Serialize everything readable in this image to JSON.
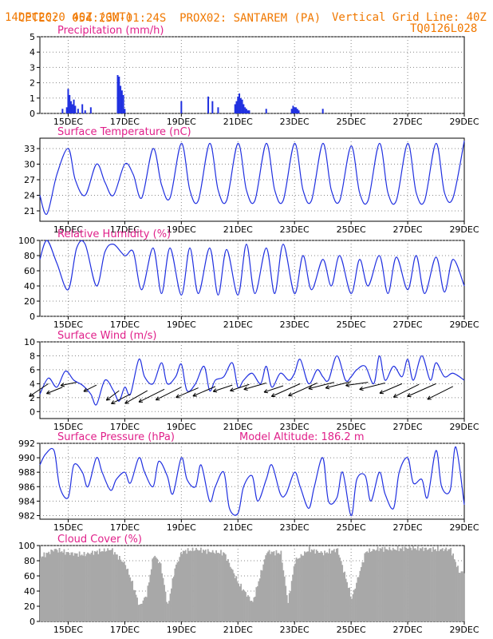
{
  "header": {
    "source": "CPTEC:",
    "coords": "054:23W-01:24S",
    "station": "PROX02: SANTAREM (PA)",
    "run": "14DEC2020 40Z (GMT)",
    "grid_note": "Vertical Grid Line: 40Z",
    "model": "TQ0126L028"
  },
  "colors": {
    "series": "#2030e0",
    "cloud": "#a8a8a8",
    "title": "#e0208a",
    "header": "#f07800",
    "arrow": "#000000"
  },
  "x_axis": {
    "start_day": 14,
    "end_day": 29,
    "ticks": [
      "15DEC",
      "17DEC",
      "19DEC",
      "21DEC",
      "23DEC",
      "25DEC",
      "27DEC",
      "29DEC"
    ]
  },
  "chart_data": [
    {
      "type": "bar",
      "title": "Precipitation (mm/h)",
      "ylim": [
        0,
        5
      ],
      "yticks": [
        "0",
        "1",
        "2",
        "3",
        "4",
        "5"
      ],
      "x": [
        14.8,
        14.95,
        15.0,
        15.05,
        15.1,
        15.15,
        15.2,
        15.25,
        15.35,
        15.5,
        15.6,
        15.8,
        16.75,
        16.8,
        16.85,
        16.9,
        16.95,
        17.0,
        19.0,
        19.95,
        20.1,
        20.3,
        20.9,
        20.95,
        21.0,
        21.05,
        21.1,
        21.15,
        21.2,
        21.25,
        21.3,
        21.35,
        21.4,
        22.0,
        22.9,
        22.95,
        23.0,
        23.05,
        23.1,
        23.15,
        24.0
      ],
      "values": [
        0.3,
        0.4,
        1.6,
        1.2,
        0.8,
        0.6,
        0.9,
        0.5,
        0.3,
        0.6,
        0.2,
        0.4,
        2.5,
        2.4,
        1.8,
        1.5,
        1.2,
        0.3,
        0.8,
        1.1,
        0.8,
        0.4,
        0.6,
        0.8,
        1.1,
        1.3,
        1.0,
        0.9,
        0.6,
        0.4,
        0.3,
        0.2,
        0.2,
        0.3,
        0.3,
        0.5,
        0.4,
        0.4,
        0.3,
        0.2,
        0.3
      ]
    },
    {
      "type": "line",
      "title": "Surface Temperature (nC)",
      "ylim": [
        19,
        35
      ],
      "yticks": [
        "21",
        "24",
        "27",
        "30",
        "33"
      ],
      "x": [
        14.0,
        14.25,
        14.6,
        15.0,
        15.25,
        15.6,
        16.0,
        16.3,
        16.6,
        17.0,
        17.3,
        17.6,
        18.0,
        18.3,
        18.6,
        19.0,
        19.3,
        19.6,
        20.0,
        20.3,
        20.6,
        21.0,
        21.3,
        21.6,
        22.0,
        22.3,
        22.6,
        23.0,
        23.3,
        23.6,
        24.0,
        24.3,
        24.6,
        25.0,
        25.3,
        25.6,
        26.0,
        26.3,
        26.6,
        27.0,
        27.3,
        27.6,
        28.0,
        28.3,
        28.6,
        29.0
      ],
      "values": [
        24,
        20.4,
        28,
        33,
        27,
        24,
        30,
        26.5,
        24,
        30,
        28,
        23.5,
        33,
        26,
        23.5,
        34,
        25,
        23,
        34,
        25,
        23,
        34,
        25,
        23,
        34,
        25,
        23,
        34,
        25,
        23,
        34,
        25,
        23,
        33.5,
        24.5,
        23,
        34,
        24.5,
        23,
        34,
        24.5,
        23,
        34,
        24.5,
        23.5,
        34.5
      ]
    },
    {
      "type": "line",
      "title": "Relative Humidity (%)",
      "ylim": [
        0,
        100
      ],
      "yticks": [
        "0",
        "20",
        "40",
        "60",
        "80",
        "100"
      ],
      "x": [
        14.0,
        14.25,
        14.6,
        15.0,
        15.3,
        15.6,
        16.0,
        16.3,
        16.6,
        17.0,
        17.3,
        17.6,
        18.0,
        18.3,
        18.6,
        19.0,
        19.3,
        19.6,
        20.0,
        20.3,
        20.6,
        21.0,
        21.3,
        21.6,
        22.0,
        22.3,
        22.6,
        23.0,
        23.3,
        23.6,
        24.0,
        24.3,
        24.6,
        25.0,
        25.3,
        25.6,
        26.0,
        26.3,
        26.6,
        27.0,
        27.3,
        27.6,
        28.0,
        28.3,
        28.6,
        29.0
      ],
      "values": [
        75,
        100,
        70,
        35,
        90,
        95,
        40,
        85,
        95,
        80,
        85,
        35,
        90,
        30,
        90,
        28,
        90,
        30,
        90,
        28,
        88,
        28,
        95,
        30,
        90,
        30,
        95,
        30,
        80,
        35,
        75,
        40,
        80,
        30,
        75,
        40,
        80,
        30,
        78,
        35,
        80,
        30,
        78,
        32,
        75,
        40
      ]
    },
    {
      "type": "line",
      "title": "Surface Wind (m/s)",
      "ylim": [
        -1,
        10
      ],
      "yticks": [
        "0",
        "2",
        "4",
        "6",
        "8",
        "10"
      ],
      "x": [
        14.0,
        14.3,
        14.6,
        14.9,
        15.2,
        15.5,
        15.8,
        16.0,
        16.3,
        16.6,
        16.8,
        17.0,
        17.2,
        17.5,
        17.7,
        18.0,
        18.3,
        18.5,
        18.8,
        19.0,
        19.2,
        19.5,
        19.8,
        20.0,
        20.2,
        20.5,
        20.8,
        21.0,
        21.2,
        21.5,
        21.8,
        22.0,
        22.2,
        22.5,
        22.8,
        23.0,
        23.2,
        23.5,
        23.8,
        24.0,
        24.2,
        24.5,
        24.8,
        25.0,
        25.2,
        25.5,
        25.8,
        26.0,
        26.2,
        26.5,
        26.8,
        27.0,
        27.2,
        27.5,
        27.8,
        28.0,
        28.3,
        28.6,
        29.0
      ],
      "values": [
        2.5,
        4.8,
        3.5,
        5.8,
        4.5,
        3.8,
        2.5,
        1.0,
        4.5,
        3.0,
        1.5,
        3.5,
        2.5,
        7.5,
        5.0,
        4.0,
        7.0,
        4.0,
        5.0,
        6.8,
        3.0,
        4.0,
        6.5,
        3.0,
        4.5,
        5.0,
        7.0,
        3.5,
        4.5,
        5.5,
        4.0,
        6.5,
        3.5,
        5.5,
        4.5,
        5.5,
        7.5,
        4.0,
        6.0,
        5.0,
        4.5,
        8.0,
        4.5,
        5.0,
        6.0,
        6.5,
        4.0,
        8.0,
        4.5,
        6.5,
        5.0,
        7.5,
        4.5,
        8.0,
        4.5,
        7.0,
        5.0,
        5.5,
        4.5
      ],
      "vectors": {
        "x": [
          14.3,
          14.8,
          15.3,
          16.0,
          16.8,
          17.2,
          17.8,
          18.4,
          19.0,
          19.6,
          20.2,
          20.8,
          21.4,
          22.0,
          22.6,
          23.2,
          23.8,
          24.4,
          25.0,
          25.6,
          26.2,
          26.8,
          27.4,
          28.0,
          28.6
        ],
        "u": [
          -3.0,
          -2.5,
          -2.5,
          -2.0,
          -2.0,
          -3.0,
          -3.5,
          -4.0,
          -4.0,
          -3.5,
          -3.5,
          -3.0,
          -3.0,
          -3.5,
          -3.0,
          -4.5,
          -4.5,
          -4.0,
          -4.0,
          -3.5,
          -4.0,
          -3.5,
          -4.0,
          -4.5,
          -4.0
        ],
        "v": [
          -2.0,
          -1.0,
          -0.5,
          -1.0,
          -1.5,
          -1.5,
          -2.0,
          -2.0,
          -2.0,
          -1.5,
          -1.5,
          -1.0,
          -1.0,
          -1.0,
          -1.0,
          -2.0,
          -2.0,
          -1.0,
          -1.0,
          -0.5,
          -1.0,
          -1.5,
          -2.0,
          -2.0,
          -2.0
        ],
        "y": [
          4.0,
          3.5,
          4.2,
          3.8,
          3.0,
          2.5,
          3.0,
          3.2,
          3.5,
          3.4,
          3.6,
          3.8,
          3.9,
          4.1,
          3.7,
          4.0,
          4.1,
          4.2,
          4.3,
          4.2,
          4.1,
          4.0,
          3.9,
          4.0,
          3.6
        ]
      }
    },
    {
      "type": "line",
      "title": "Surface Pressure (hPa)",
      "annotation": "Model Altitude: 186.2 m",
      "ylim": [
        981.5,
        992
      ],
      "yticks": [
        "982",
        "984",
        "986",
        "988",
        "990",
        "992"
      ],
      "x": [
        14.0,
        14.2,
        14.5,
        14.7,
        15.0,
        15.2,
        15.5,
        15.7,
        16.0,
        16.2,
        16.5,
        16.7,
        17.0,
        17.2,
        17.5,
        17.7,
        18.0,
        18.2,
        18.5,
        18.7,
        19.0,
        19.2,
        19.5,
        19.7,
        20.0,
        20.2,
        20.5,
        20.7,
        21.0,
        21.2,
        21.5,
        21.7,
        22.0,
        22.2,
        22.5,
        22.7,
        23.0,
        23.2,
        23.5,
        23.7,
        24.0,
        24.2,
        24.5,
        24.7,
        25.0,
        25.2,
        25.5,
        25.7,
        26.0,
        26.2,
        26.5,
        26.7,
        27.0,
        27.2,
        27.5,
        27.7,
        28.0,
        28.2,
        28.5,
        28.7,
        29.0
      ],
      "values": [
        989,
        990.5,
        991,
        986,
        984.5,
        989,
        988,
        986,
        990,
        988,
        985.5,
        987,
        988,
        986.5,
        990,
        988,
        986,
        989.5,
        987.5,
        985,
        990,
        987,
        986,
        989,
        984,
        986,
        988,
        983,
        982.3,
        986,
        987.5,
        984,
        987,
        989,
        985,
        985,
        988,
        986,
        983,
        986,
        990,
        984,
        984.5,
        988,
        982,
        987,
        987.5,
        984,
        988,
        985,
        983,
        988,
        990,
        986.5,
        987,
        984.5,
        991,
        986,
        985.5,
        991.5,
        983.5
      ]
    },
    {
      "type": "bar",
      "title": "Cloud Cover (%)",
      "ylim": [
        0,
        100
      ],
      "yticks": [
        "0",
        "20",
        "40",
        "60",
        "80",
        "100"
      ],
      "x": [
        14.0,
        14.5,
        15.0,
        15.5,
        16.0,
        16.5,
        17.0,
        17.25,
        17.5,
        17.75,
        18.0,
        18.25,
        18.5,
        18.75,
        19.0,
        19.5,
        20.0,
        20.5,
        21.0,
        21.5,
        22.0,
        22.5,
        22.75,
        23.0,
        23.5,
        24.0,
        24.5,
        25.0,
        25.5,
        26.0,
        26.5,
        27.0,
        27.5,
        28.0,
        28.5,
        28.8,
        29.0
      ],
      "values": [
        85,
        95,
        90,
        88,
        92,
        95,
        75,
        50,
        20,
        35,
        88,
        75,
        20,
        70,
        92,
        95,
        92,
        90,
        50,
        25,
        92,
        90,
        25,
        80,
        95,
        90,
        95,
        30,
        92,
        96,
        95,
        97,
        96,
        95,
        95,
        65,
        65
      ]
    }
  ]
}
